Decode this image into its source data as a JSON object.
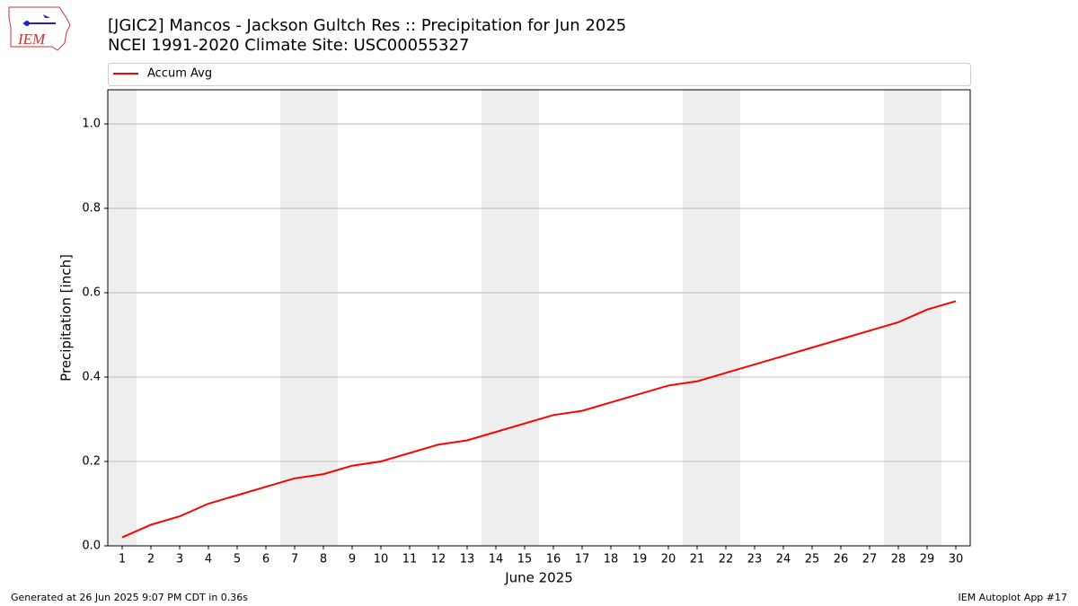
{
  "logo": {
    "text": "IEM"
  },
  "chart_data": {
    "type": "line",
    "title": "[JGIC2] Mancos - Jackson Gultch Res :: Precipitation for Jun 2025",
    "subtitle": "NCEI 1991-2020 Climate Site: USC00055327",
    "x_label": "June 2025",
    "y_label": "Precipitation [inch]",
    "x": [
      1,
      2,
      3,
      4,
      5,
      6,
      7,
      8,
      9,
      10,
      11,
      12,
      13,
      14,
      15,
      16,
      17,
      18,
      19,
      20,
      21,
      22,
      23,
      24,
      25,
      26,
      27,
      28,
      29,
      30
    ],
    "series": [
      {
        "name": "Accum Avg",
        "color": "#ff0000",
        "values": [
          0.02,
          0.05,
          0.07,
          0.1,
          0.12,
          0.14,
          0.16,
          0.17,
          0.19,
          0.2,
          0.22,
          0.24,
          0.25,
          0.27,
          0.29,
          0.31,
          0.32,
          0.34,
          0.36,
          0.38,
          0.39,
          0.41,
          0.43,
          0.45,
          0.47,
          0.49,
          0.51,
          0.53,
          0.56,
          0.58
        ]
      }
    ],
    "xlim": [
      0.5,
      30.5
    ],
    "xticks": [
      1,
      2,
      3,
      4,
      5,
      6,
      7,
      8,
      9,
      10,
      11,
      12,
      13,
      14,
      15,
      16,
      17,
      18,
      19,
      20,
      21,
      22,
      23,
      24,
      25,
      26,
      27,
      28,
      29,
      30
    ],
    "ylim": [
      0,
      1.081
    ],
    "yticks": [
      {
        "value": 0,
        "label": "0.0"
      },
      0.2,
      0.4,
      0.6,
      0.8,
      {
        "value": 1,
        "label": "1.0"
      }
    ],
    "grid": true,
    "legend": "top",
    "shaded_spans": [
      [
        0.5,
        1.5
      ],
      [
        6.5,
        8.5
      ],
      [
        13.5,
        15.5
      ],
      [
        20.5,
        22.5
      ],
      [
        27.5,
        29.5
      ]
    ],
    "shade_color": "#eeeeee"
  },
  "footer": {
    "left": "Generated at 26 Jun 2025 9:07 PM CDT in 0.36s",
    "right": "IEM Autoplot App #17"
  }
}
